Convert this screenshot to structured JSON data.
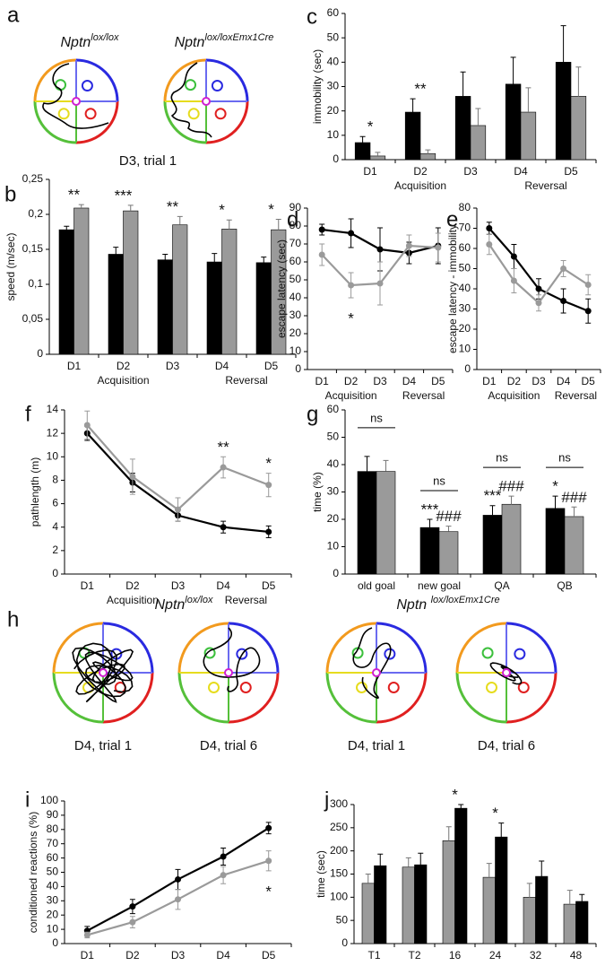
{
  "track_figures": [
    {
      "panel": "a",
      "genotypes": [
        {
          "base": "Nptn",
          "sup": "lox/lox"
        },
        {
          "base": "Nptn",
          "sup": "lox/loxEmx1Cre"
        }
      ],
      "captions": [
        "D3, trial 1"
      ]
    },
    {
      "panel": "h",
      "genotypes": [
        {
          "base": "Nptn",
          "sup": "lox/lox"
        },
        {
          "base": "Nptn ",
          "sup": "lox/loxEmx1Cre"
        }
      ],
      "captions": [
        "D4, trial 1",
        "D4, trial 6",
        "D4, trial 1",
        "D4, trial 6"
      ]
    }
  ],
  "chart_data": [
    {
      "type": "bar",
      "panel": "b",
      "ylabel": "speed (m/sec)",
      "categories": [
        "D1",
        "D2",
        "D3",
        "D4",
        "D5"
      ],
      "series": [
        {
          "color": "#000000",
          "values": [
            0.178,
            0.143,
            0.135,
            0.132,
            0.131
          ],
          "errors": [
            0.005,
            0.01,
            0.008,
            0.012,
            0.008
          ]
        },
        {
          "color": "#9a9a9a",
          "values": [
            0.209,
            0.205,
            0.185,
            0.179,
            0.178
          ],
          "errors": [
            0.005,
            0.008,
            0.012,
            0.013,
            0.015
          ]
        }
      ],
      "ylim": [
        0,
        0.25
      ],
      "yticks": [
        0,
        {
          "value": 0.05,
          "label": "0,05"
        },
        {
          "value": 0.1,
          "label": "0,1"
        },
        {
          "value": 0.15,
          "label": "0,15"
        },
        {
          "value": 0.2,
          "label": "0,2"
        },
        {
          "value": 0.25,
          "label": "0,25"
        }
      ],
      "annotations": [
        {
          "text": "**",
          "category": "D1"
        },
        {
          "text": "***",
          "category": "D2"
        },
        {
          "text": "**",
          "category": "D3"
        },
        {
          "text": "*",
          "category": "D4"
        },
        {
          "text": "*",
          "category": "D5"
        }
      ],
      "x_groups": [
        {
          "label": "Acquisition",
          "from": "D1",
          "to": "D3"
        },
        {
          "label": "Reversal",
          "from": "D4",
          "to": "D5"
        }
      ]
    },
    {
      "type": "bar",
      "panel": "c",
      "ylabel": "immobility (sec)",
      "categories": [
        "D1",
        "D2",
        "D3",
        "D4",
        "D5"
      ],
      "series": [
        {
          "color": "#000000",
          "values": [
            7,
            19.5,
            26,
            31,
            40
          ],
          "errors": [
            2.5,
            5.5,
            10,
            11,
            15
          ]
        },
        {
          "color": "#9a9a9a",
          "values": [
            1.5,
            2.5,
            14,
            19.5,
            26
          ],
          "errors": [
            1.5,
            1.5,
            7,
            10,
            12
          ]
        }
      ],
      "ylim": [
        0,
        60
      ],
      "yticks": [
        0,
        10,
        20,
        30,
        40,
        50,
        60
      ],
      "annotations": [
        {
          "text": "*",
          "category": "D1"
        },
        {
          "text": "**",
          "category": "D2"
        }
      ],
      "x_groups": [
        {
          "label": "Acquisition",
          "from": "D1",
          "to": "D3"
        },
        {
          "label": "Reversal",
          "from": "D4",
          "to": "D5"
        }
      ]
    },
    {
      "type": "line",
      "panel": "d",
      "ylabel": "escape latency (sec)",
      "categories": [
        "D1",
        "D2",
        "D3",
        "D4",
        "D5"
      ],
      "series": [
        {
          "color": "#000000",
          "values": [
            78,
            76,
            67,
            65,
            69
          ],
          "errors": [
            3,
            8,
            12,
            6,
            10
          ]
        },
        {
          "color": "#9a9a9a",
          "values": [
            64,
            47,
            48,
            69,
            68
          ],
          "errors": [
            6,
            7,
            12,
            6,
            8
          ]
        }
      ],
      "ylim": [
        0,
        90
      ],
      "yticks": [
        0,
        10,
        20,
        30,
        40,
        50,
        60,
        70,
        80,
        90
      ],
      "annotations": [
        {
          "text": "*",
          "category": "D2",
          "series": 1,
          "position": "below"
        }
      ],
      "x_groups": [
        {
          "label": "Acquisition",
          "from": "D1",
          "to": "D3"
        },
        {
          "label": "Reversal",
          "from": "D4",
          "to": "D5"
        }
      ]
    },
    {
      "type": "line",
      "panel": "e",
      "ylabel": "escape latency - immobility",
      "categories": [
        "D1",
        "D2",
        "D3",
        "D4",
        "D5"
      ],
      "series": [
        {
          "color": "#000000",
          "values": [
            70,
            56,
            40,
            34,
            29
          ],
          "errors": [
            3,
            6,
            5,
            6,
            6
          ]
        },
        {
          "color": "#9a9a9a",
          "values": [
            62,
            44,
            33,
            50,
            42
          ],
          "errors": [
            5,
            6,
            4,
            4,
            5
          ]
        }
      ],
      "ylim": [
        0,
        80
      ],
      "yticks": [
        0,
        10,
        20,
        30,
        40,
        50,
        60,
        70,
        80
      ],
      "annotations": [],
      "x_groups": [
        {
          "label": "Acquisition",
          "from": "D1",
          "to": "D3"
        },
        {
          "label": "Reversal",
          "from": "D4",
          "to": "D5"
        }
      ]
    },
    {
      "type": "line",
      "panel": "f",
      "ylabel": "pathlength (m)",
      "categories": [
        "D1",
        "D2",
        "D3",
        "D4",
        "D5"
      ],
      "series": [
        {
          "color": "#000000",
          "values": [
            12,
            7.8,
            5,
            4,
            3.6
          ],
          "errors": [
            0.6,
            0.8,
            0.5,
            0.5,
            0.5
          ]
        },
        {
          "color": "#9a9a9a",
          "values": [
            12.7,
            8.3,
            5.5,
            9.1,
            7.6
          ],
          "errors": [
            1.2,
            1.5,
            1,
            0.9,
            1
          ]
        }
      ],
      "ylim": [
        0,
        14
      ],
      "yticks": [
        0,
        2,
        4,
        6,
        8,
        10,
        12,
        14
      ],
      "annotations": [
        {
          "text": "**",
          "category": "D4",
          "series": 1
        },
        {
          "text": "*",
          "category": "D5",
          "series": 1
        }
      ],
      "x_groups": [
        {
          "label": "Acquisition",
          "from": "D1",
          "to": "D3"
        },
        {
          "label": "Reversal",
          "from": "D4",
          "to": "D5"
        }
      ]
    },
    {
      "type": "bar",
      "panel": "g",
      "ylabel": "time (%)",
      "categories": [
        "old goal",
        "new goal",
        "QA",
        "QB"
      ],
      "series": [
        {
          "color": "#000000",
          "values": [
            37.5,
            17,
            21.5,
            24
          ],
          "errors": [
            5.5,
            3,
            3.5,
            4.5
          ]
        },
        {
          "color": "#9a9a9a",
          "values": [
            37.5,
            15.5,
            25.5,
            21
          ],
          "errors": [
            4,
            2,
            3,
            3.5
          ]
        }
      ],
      "ylim": [
        0,
        60
      ],
      "yticks": [
        0,
        10,
        20,
        30,
        40,
        50,
        60
      ],
      "annotations": [
        {
          "text": "ns",
          "category": "old goal",
          "bracket": true
        },
        {
          "text": "ns",
          "category": "new goal",
          "bracket": true
        },
        {
          "text": "ns",
          "category": "QA",
          "bracket": true
        },
        {
          "text": "ns",
          "category": "QB",
          "bracket": true
        },
        {
          "text": "***",
          "category": "new goal",
          "series": 0
        },
        {
          "text": "###",
          "category": "new goal",
          "series": 1
        },
        {
          "text": "***",
          "category": "QA",
          "series": 0
        },
        {
          "text": "###",
          "category": "QA",
          "series": 1
        },
        {
          "text": "*",
          "category": "QB",
          "series": 0
        },
        {
          "text": "###",
          "category": "QB",
          "series": 1
        }
      ],
      "x_groups": []
    },
    {
      "type": "line",
      "panel": "i",
      "ylabel": "conditioned reactions (%)",
      "categories": [
        "D1",
        "D2",
        "D3",
        "D4",
        "D5"
      ],
      "series": [
        {
          "color": "#000000",
          "values": [
            9,
            26,
            45,
            61,
            81
          ],
          "errors": [
            3,
            5,
            7,
            6,
            4
          ]
        },
        {
          "color": "#9a9a9a",
          "values": [
            6,
            15,
            31,
            48,
            58
          ],
          "errors": [
            2,
            4,
            7,
            6,
            7
          ]
        }
      ],
      "ylim": [
        0,
        100
      ],
      "yticks": [
        0,
        10,
        20,
        30,
        40,
        50,
        60,
        70,
        80,
        90,
        100
      ],
      "annotations": [
        {
          "text": "*",
          "category": "D5",
          "series": 1,
          "position": "below"
        }
      ],
      "x_groups": []
    },
    {
      "type": "bar",
      "panel": "j",
      "ylabel": "time (sec)",
      "categories": [
        "T1",
        "T2",
        "16",
        "24",
        "32",
        "48"
      ],
      "series": [
        {
          "color": "#9a9a9a",
          "values": [
            130,
            165,
            222,
            143,
            100,
            85
          ],
          "errors": [
            20,
            20,
            30,
            30,
            30,
            30
          ]
        },
        {
          "color": "#000000",
          "values": [
            168,
            170,
            292,
            230,
            145,
            91
          ],
          "errors": [
            25,
            25,
            8,
            30,
            33,
            15
          ]
        }
      ],
      "ylim": [
        0,
        300
      ],
      "yticks": [
        0,
        50,
        100,
        150,
        200,
        250,
        300
      ],
      "annotations": [
        {
          "text": "*",
          "category": "16"
        },
        {
          "text": "*",
          "category": "24"
        }
      ],
      "x_groups": []
    }
  ]
}
